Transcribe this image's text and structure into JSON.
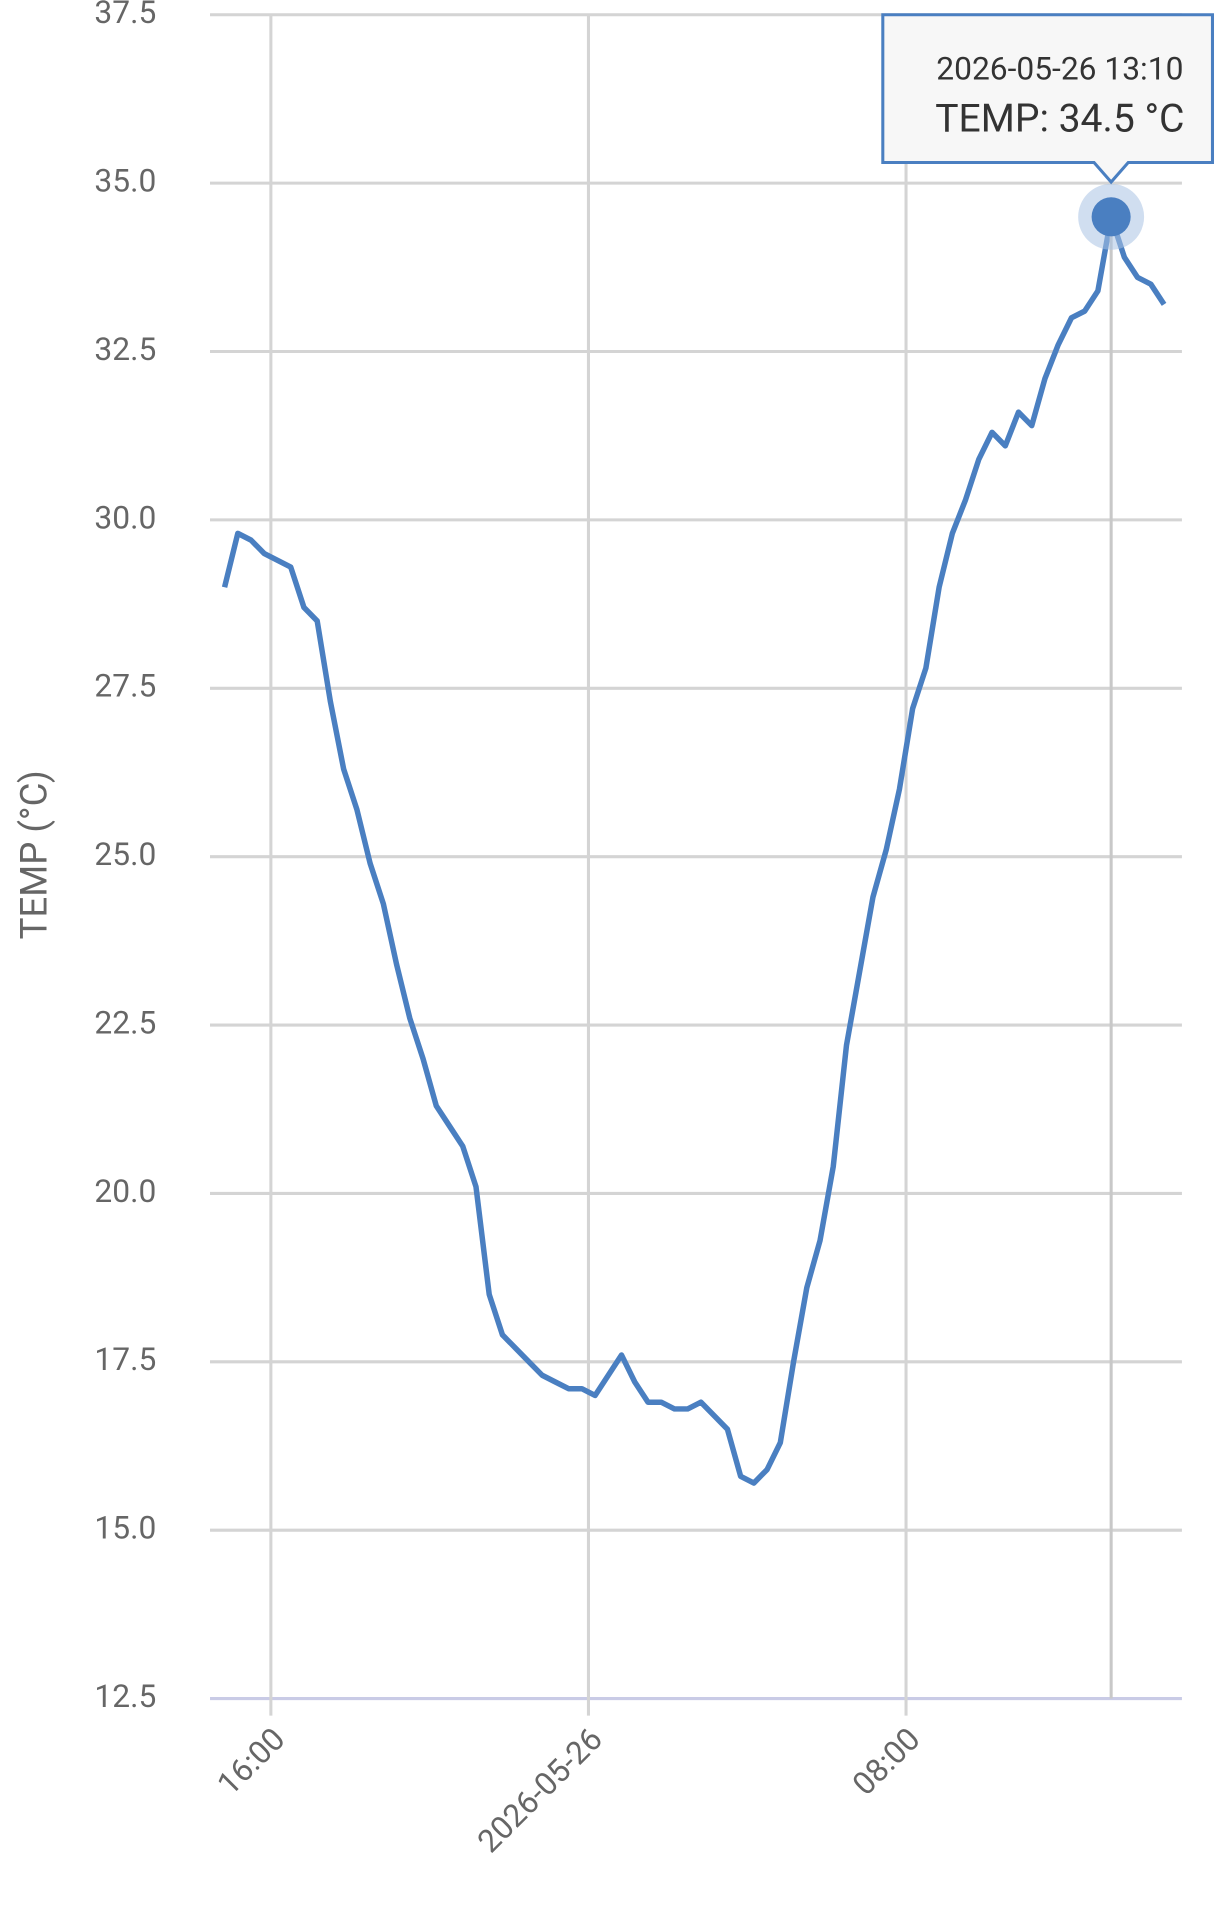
{
  "chart_data": {
    "type": "line",
    "y_label": "TEMP (°C)",
    "color": "#4a7fc1",
    "grid": true,
    "x": [
      "2026-05-25 14:50",
      "2026-05-25 15:10",
      "2026-05-25 15:30",
      "2026-05-25 15:50",
      "2026-05-25 16:10",
      "2026-05-25 16:30",
      "2026-05-25 16:50",
      "2026-05-25 17:10",
      "2026-05-25 17:30",
      "2026-05-25 17:50",
      "2026-05-25 18:10",
      "2026-05-25 18:30",
      "2026-05-25 18:50",
      "2026-05-25 19:10",
      "2026-05-25 19:30",
      "2026-05-25 19:50",
      "2026-05-25 20:10",
      "2026-05-25 20:30",
      "2026-05-25 20:50",
      "2026-05-25 21:10",
      "2026-05-25 21:30",
      "2026-05-25 21:50",
      "2026-05-25 22:10",
      "2026-05-25 22:30",
      "2026-05-25 22:50",
      "2026-05-25 23:10",
      "2026-05-25 23:30",
      "2026-05-25 23:50",
      "2026-05-26 00:10",
      "2026-05-26 00:30",
      "2026-05-26 00:50",
      "2026-05-26 01:10",
      "2026-05-26 01:30",
      "2026-05-26 01:50",
      "2026-05-26 02:10",
      "2026-05-26 02:30",
      "2026-05-26 02:50",
      "2026-05-26 03:10",
      "2026-05-26 03:30",
      "2026-05-26 03:50",
      "2026-05-26 04:10",
      "2026-05-26 04:30",
      "2026-05-26 04:50",
      "2026-05-26 05:10",
      "2026-05-26 05:30",
      "2026-05-26 05:50",
      "2026-05-26 06:10",
      "2026-05-26 06:30",
      "2026-05-26 06:50",
      "2026-05-26 07:10",
      "2026-05-26 07:30",
      "2026-05-26 07:50",
      "2026-05-26 08:10",
      "2026-05-26 08:30",
      "2026-05-26 08:50",
      "2026-05-26 09:10",
      "2026-05-26 09:30",
      "2026-05-26 09:50",
      "2026-05-26 10:10",
      "2026-05-26 10:30",
      "2026-05-26 10:50",
      "2026-05-26 11:10",
      "2026-05-26 11:30",
      "2026-05-26 11:50",
      "2026-05-26 12:10",
      "2026-05-26 12:30",
      "2026-05-26 12:50",
      "2026-05-26 13:10",
      "2026-05-26 13:30",
      "2026-05-26 13:50",
      "2026-05-26 14:10",
      "2026-05-26 14:30"
    ],
    "values": [
      29.0,
      29.8,
      29.7,
      29.5,
      29.4,
      29.3,
      28.7,
      28.5,
      27.3,
      26.3,
      25.7,
      24.9,
      24.3,
      23.4,
      22.6,
      22.0,
      21.3,
      21.0,
      20.7,
      20.1,
      18.5,
      17.9,
      17.7,
      17.5,
      17.3,
      17.2,
      17.1,
      17.1,
      17.0,
      17.3,
      17.6,
      17.2,
      16.9,
      16.9,
      16.8,
      16.8,
      16.9,
      16.7,
      16.5,
      15.8,
      15.7,
      15.9,
      16.3,
      17.5,
      18.6,
      19.3,
      20.4,
      22.2,
      23.3,
      24.4,
      25.1,
      26.0,
      27.2,
      27.8,
      29.0,
      29.8,
      30.3,
      30.9,
      31.3,
      31.1,
      31.6,
      31.4,
      32.1,
      32.6,
      33.0,
      33.1,
      33.4,
      34.5,
      33.9,
      33.6,
      33.5,
      33.2
    ],
    "xlim": [
      "2026-05-25 14:28",
      "2026-05-26 14:57"
    ],
    "xticks": [
      {
        "value": "2026-05-25 16:00",
        "label": "16:00"
      },
      {
        "value": "2026-05-26 00:00",
        "label": "2026-05-26"
      },
      {
        "value": "2026-05-26 08:00",
        "label": "08:00"
      }
    ],
    "ylim": [
      12.5,
      37.5
    ],
    "yticks": [
      12.5,
      {
        "value": 15,
        "label": "15.0"
      },
      17.5,
      {
        "value": 20,
        "label": "20.0"
      },
      22.5,
      {
        "value": 25,
        "label": "25.0"
      },
      27.5,
      {
        "value": 30,
        "label": "30.0"
      },
      32.5,
      {
        "value": 35,
        "label": "35.0"
      },
      37.5
    ],
    "tooltip": {
      "title": "2026-05-26 13:10",
      "text": "TEMP: 34.5 °C"
    }
  }
}
